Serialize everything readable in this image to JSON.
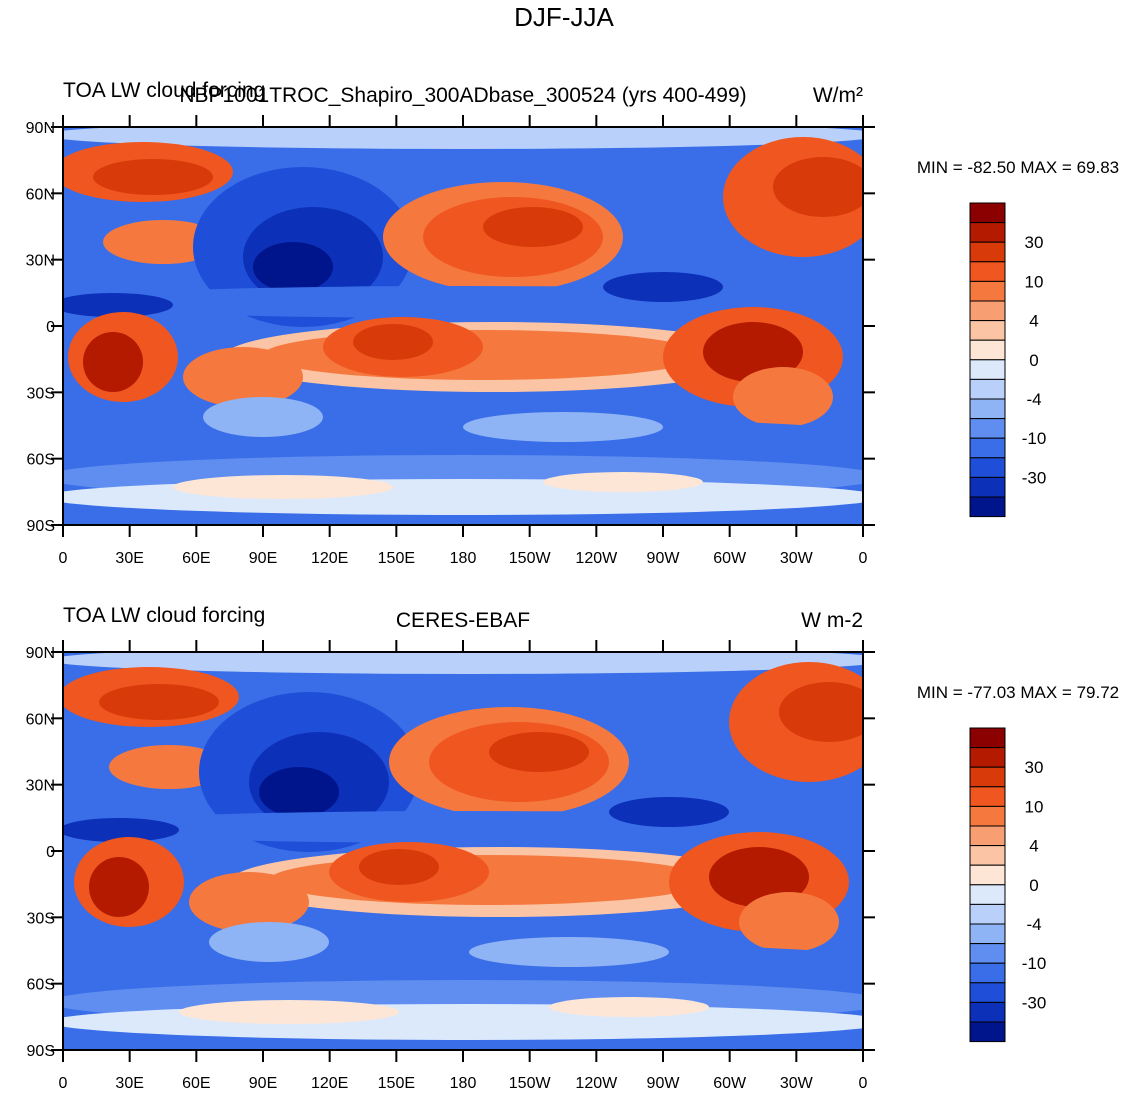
{
  "title": "DJF-JJA",
  "panels": [
    {
      "left_title": "TOA LW cloud forcing",
      "center_title": "NBP1001TROC_Shapiro_300ADbase_300524 (yrs 400-499)",
      "right_title": "W/m²",
      "min_max": "MIN = -82.50 MAX =  69.83",
      "lat_labels": [
        "90N",
        "60N",
        "30N",
        "0",
        "30S",
        "60S",
        "90S"
      ],
      "lon_labels": [
        "0",
        "30E",
        "60E",
        "90E",
        "120E",
        "150E",
        "180",
        "150W",
        "120W",
        "90W",
        "60W",
        "30W",
        "0"
      ],
      "colorbar": {
        "labels": [
          "30",
          "10",
          "4",
          "0",
          "-4",
          "-10",
          "-30"
        ],
        "colors": [
          "#8b0000",
          "#b31a00",
          "#d83a0a",
          "#f0561f",
          "#f5793f",
          "#f89e73",
          "#fbc4a4",
          "#fde6d6",
          "#dce9fb",
          "#b9d1fa",
          "#8fb4f5",
          "#5f8ef0",
          "#3a6ee8",
          "#1f4ed8",
          "#0c30b8",
          "#00158c"
        ]
      }
    },
    {
      "left_title": "TOA LW cloud forcing",
      "center_title": "CERES-EBAF",
      "right_title": "W m-2",
      "min_max": "MIN = -77.03 MAX =  79.72",
      "lat_labels": [
        "90N",
        "60N",
        "30N",
        "0",
        "30S",
        "60S",
        "90S"
      ],
      "lon_labels": [
        "0",
        "30E",
        "60E",
        "90E",
        "120E",
        "150E",
        "180",
        "150W",
        "120W",
        "90W",
        "60W",
        "30W",
        "0"
      ],
      "colorbar": {
        "labels": [
          "30",
          "10",
          "4",
          "0",
          "-4",
          "-10",
          "-30"
        ],
        "colors": [
          "#8b0000",
          "#b31a00",
          "#d83a0a",
          "#f0561f",
          "#f5793f",
          "#f89e73",
          "#fbc4a4",
          "#fde6d6",
          "#dce9fb",
          "#b9d1fa",
          "#8fb4f5",
          "#5f8ef0",
          "#3a6ee8",
          "#1f4ed8",
          "#0c30b8",
          "#00158c"
        ]
      }
    }
  ]
}
